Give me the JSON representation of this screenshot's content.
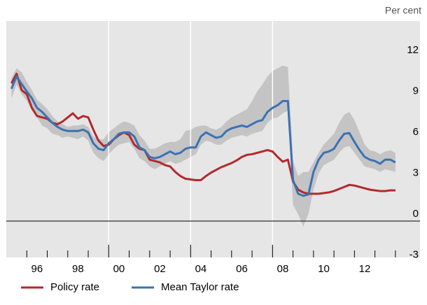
{
  "chart_data": {
    "type": "line",
    "y_unit": "Per cent",
    "x": [
      1995.25,
      1995.5,
      1995.75,
      1996,
      1996.25,
      1996.5,
      1996.75,
      1997,
      1997.25,
      1997.5,
      1997.75,
      1998,
      1998.25,
      1998.5,
      1998.75,
      1999,
      1999.25,
      1999.5,
      1999.75,
      2000,
      2000.25,
      2000.5,
      2000.75,
      2001,
      2001.25,
      2001.5,
      2001.75,
      2002,
      2002.25,
      2002.5,
      2002.75,
      2003,
      2003.25,
      2003.5,
      2003.75,
      2004,
      2004.25,
      2004.5,
      2004.75,
      2005,
      2005.25,
      2005.5,
      2005.75,
      2006,
      2006.25,
      2006.5,
      2006.75,
      2007,
      2007.25,
      2007.5,
      2007.75,
      2008,
      2008.25,
      2008.5,
      2008.75,
      2009,
      2009.25,
      2009.5,
      2009.75,
      2010,
      2010.25,
      2010.5,
      2010.75,
      2011,
      2011.25,
      2011.5,
      2011.75,
      2012,
      2012.25,
      2012.5,
      2012.75,
      2013,
      2013.25,
      2013.5,
      2013.75,
      2014
    ],
    "band": {
      "color": "#c4c4c4",
      "lower": [
        9.0,
        10.0,
        9.3,
        8.8,
        8.1,
        7.6,
        7.0,
        6.8,
        6.4,
        6.3,
        6.1,
        6.2,
        6.1,
        6.0,
        6.2,
        5.9,
        5.0,
        4.6,
        4.4,
        4.9,
        5.3,
        5.6,
        5.7,
        5.8,
        5.3,
        4.6,
        4.4,
        4.0,
        3.8,
        4.0,
        4.2,
        4.4,
        4.2,
        4.3,
        4.5,
        4.7,
        4.9,
        5.6,
        5.9,
        5.8,
        5.6,
        5.6,
        5.9,
        6.1,
        6.2,
        6.3,
        6.2,
        6.4,
        6.5,
        6.6,
        7.2,
        7.5,
        7.6,
        7.9,
        8.1,
        1.2,
        0.5,
        -0.4,
        0.5,
        2.3,
        3.5,
        4.1,
        4.3,
        4.5,
        5.0,
        5.4,
        5.5,
        5.0,
        4.5,
        4.0,
        3.9,
        3.8,
        3.6,
        3.8,
        3.7,
        3.6
      ],
      "upper": [
        10.5,
        11.2,
        10.9,
        10.2,
        9.6,
        8.9,
        8.6,
        8.2,
        7.7,
        7.3,
        7.1,
        6.9,
        7.0,
        7.0,
        7.1,
        6.9,
        6.2,
        6.0,
        6.0,
        6.5,
        6.8,
        7.1,
        7.3,
        7.2,
        7.0,
        6.3,
        5.9,
        5.3,
        5.3,
        5.5,
        5.7,
        5.8,
        5.8,
        6.0,
        6.6,
        6.7,
        6.9,
        7.0,
        7.0,
        6.8,
        6.7,
        6.9,
        7.3,
        7.6,
        7.8,
        8.0,
        8.2,
        8.8,
        9.5,
        10.0,
        10.6,
        11.0,
        11.2,
        11.4,
        11.3,
        4.4,
        3.3,
        3.6,
        3.6,
        4.3,
        5.0,
        5.6,
        6.0,
        6.4,
        7.2,
        7.8,
        8.0,
        7.4,
        6.5,
        5.6,
        5.2,
        5.1,
        4.9,
        5.1,
        5.2,
        5.0
      ]
    },
    "series": [
      {
        "name": "Policy rate",
        "color": "#b3282d",
        "values": [
          10.1,
          10.8,
          9.6,
          9.3,
          8.3,
          7.7,
          7.6,
          7.5,
          7.2,
          7.1,
          7.3,
          7.6,
          7.9,
          7.5,
          7.7,
          7.6,
          6.7,
          5.9,
          5.5,
          5.6,
          6.0,
          6.3,
          6.5,
          6.3,
          5.6,
          5.3,
          5.2,
          4.5,
          4.4,
          4.3,
          4.1,
          4.0,
          3.6,
          3.3,
          3.1,
          3.05,
          3.0,
          3.0,
          3.3,
          3.55,
          3.75,
          3.95,
          4.1,
          4.25,
          4.45,
          4.7,
          4.85,
          4.9,
          5.0,
          5.1,
          5.2,
          5.1,
          4.7,
          4.35,
          4.5,
          2.9,
          2.3,
          2.1,
          2.0,
          2.0,
          2.0,
          2.05,
          2.1,
          2.2,
          2.35,
          2.5,
          2.65,
          2.6,
          2.5,
          2.4,
          2.3,
          2.25,
          2.2,
          2.2,
          2.25,
          2.25
        ]
      },
      {
        "name": "Mean Taylor rate",
        "color": "#3a72b4",
        "values": [
          9.7,
          10.6,
          10.05,
          9.5,
          9.0,
          8.3,
          8.0,
          7.6,
          7.2,
          6.9,
          6.7,
          6.6,
          6.6,
          6.6,
          6.7,
          6.5,
          5.7,
          5.3,
          5.2,
          5.7,
          6.0,
          6.4,
          6.5,
          6.5,
          6.2,
          5.4,
          5.2,
          4.7,
          4.6,
          4.7,
          4.9,
          5.1,
          4.9,
          5.0,
          5.3,
          5.4,
          5.4,
          6.2,
          6.5,
          6.3,
          6.1,
          6.2,
          6.6,
          6.8,
          6.9,
          7.0,
          6.9,
          7.1,
          7.3,
          7.4,
          8.0,
          8.3,
          8.5,
          8.8,
          8.8,
          3.0,
          2.0,
          1.85,
          1.95,
          3.6,
          4.5,
          5.0,
          5.1,
          5.3,
          5.9,
          6.4,
          6.45,
          5.8,
          5.2,
          4.7,
          4.5,
          4.4,
          4.2,
          4.5,
          4.5,
          4.3
        ]
      }
    ],
    "xlim": [
      1995,
      2015.2
    ],
    "ylim": [
      -2.67,
      14.67
    ],
    "yticks": [
      -3,
      0,
      3,
      6,
      9,
      12
    ],
    "xticks": [
      {
        "value": 1996.5,
        "label": "96"
      },
      {
        "value": 1998.5,
        "label": "98"
      },
      {
        "value": 2000.5,
        "label": "00"
      },
      {
        "value": 2002.5,
        "label": "02"
      },
      {
        "value": 2004.5,
        "label": "04"
      },
      {
        "value": 2006.5,
        "label": "06"
      },
      {
        "value": 2008.5,
        "label": "08"
      },
      {
        "value": 2010.5,
        "label": "10"
      },
      {
        "value": 2012.5,
        "label": "12"
      }
    ],
    "x_minor_ticks": [
      1996,
      1997,
      1998,
      1999,
      2001,
      2002,
      2003,
      2005,
      2006,
      2007,
      2009,
      2010,
      2011,
      2012,
      2013,
      2014
    ],
    "x_grid": [
      2000,
      2004,
      2008
    ],
    "background": "#e6e6e6"
  }
}
